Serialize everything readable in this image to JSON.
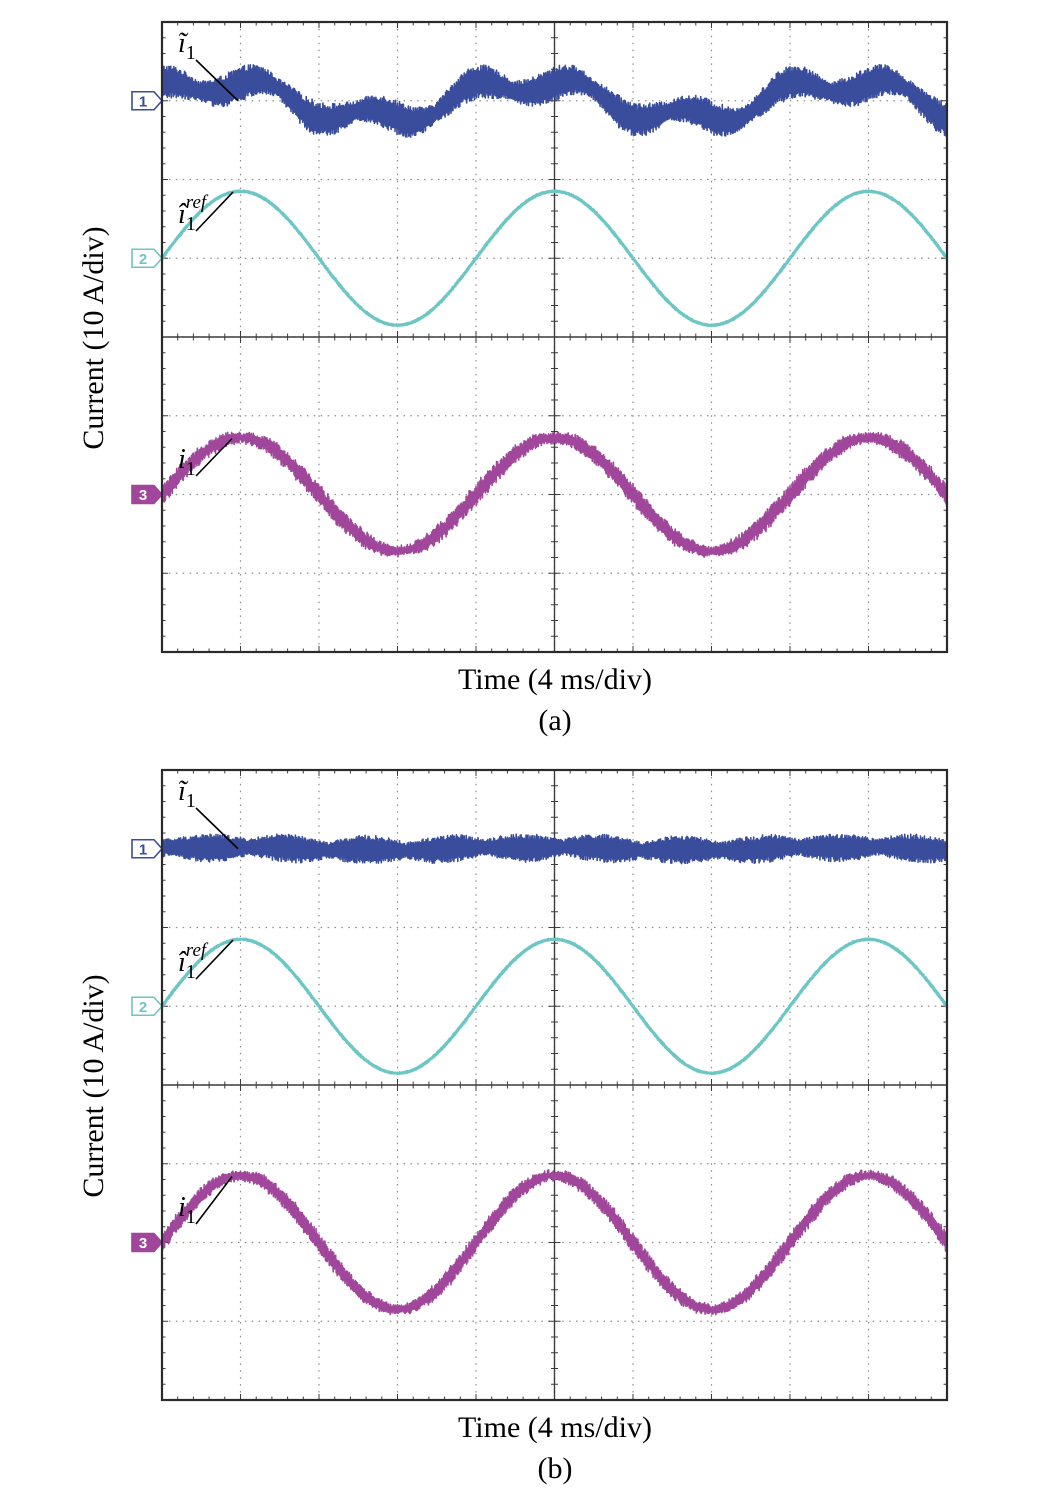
{
  "chart_data": [
    {
      "type": "line",
      "subplot_label": "(a)",
      "xlabel": "Time (4 ms/div)",
      "ylabel": "Current (10 A/div)",
      "x_divisions": 10,
      "y_divisions": 8,
      "grid": true,
      "fundamental_period_divisions": 4,
      "series": [
        {
          "marker": "1",
          "label": "ĩ1",
          "color": "#3a4d9c",
          "offset_div": 7.0,
          "shape": "ripple",
          "peak_div": 0.35,
          "ripple_div": 0.22
        },
        {
          "marker": "2",
          "label": "î1ref",
          "color": "#6cc6c4",
          "offset_div": 5.0,
          "shape": "sine",
          "peak_div": 0.85,
          "ripple_div": 0.02
        },
        {
          "marker": "3",
          "label": "i1",
          "color": "#a0479c",
          "offset_div": 2.0,
          "shape": "sine",
          "peak_div": 0.72,
          "ripple_div": 0.13
        }
      ]
    },
    {
      "type": "line",
      "subplot_label": "(b)",
      "xlabel": "Time (4 ms/div)",
      "ylabel": "Current (10 A/div)",
      "x_divisions": 10,
      "y_divisions": 8,
      "grid": true,
      "fundamental_period_divisions": 4,
      "series": [
        {
          "marker": "1",
          "label": "ĩ1",
          "color": "#3a4d9c",
          "offset_div": 7.0,
          "shape": "ripple",
          "peak_div": 0.03,
          "ripple_div": 0.18
        },
        {
          "marker": "2",
          "label": "î1ref",
          "color": "#6cc6c4",
          "offset_div": 5.0,
          "shape": "sine",
          "peak_div": 0.85,
          "ripple_div": 0.02
        },
        {
          "marker": "3",
          "label": "i1",
          "color": "#a0479c",
          "offset_div": 2.0,
          "shape": "sine",
          "peak_div": 0.85,
          "ripple_div": 0.12
        }
      ]
    }
  ]
}
